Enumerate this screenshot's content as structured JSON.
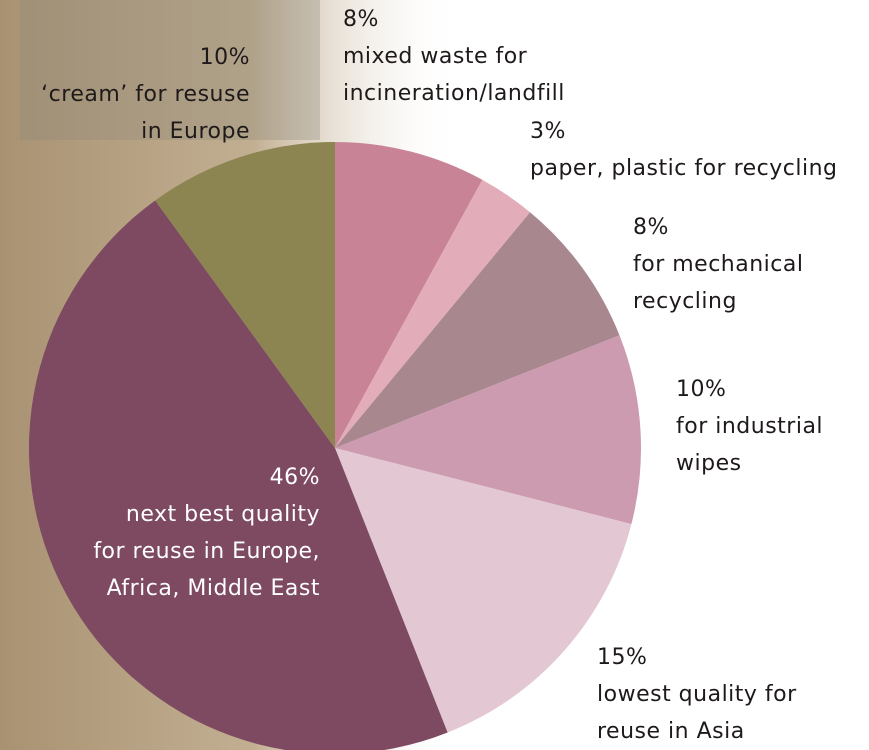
{
  "chart_data": {
    "type": "pie",
    "values": [
      8,
      3,
      8,
      10,
      15,
      46,
      10
    ],
    "value_labels": [
      "8%",
      "3%",
      "8%",
      "10%",
      "15%",
      "46%",
      "10%"
    ],
    "labels": [
      [
        "mixed waste for",
        "incineration/landfill"
      ],
      [
        "paper, plastic for recycling"
      ],
      [
        "for mechanical",
        "recycling"
      ],
      [
        "for industrial",
        "wipes"
      ],
      [
        "lowest quality for",
        "reuse in Asia"
      ],
      [
        "next best quality",
        "for reuse in Europe,",
        "Africa, Middle East"
      ],
      [
        "‘cream’ for resuse",
        "in Europe"
      ]
    ],
    "colors": [
      "#c98396",
      "#e2adb8",
      "#a8878f",
      "#cc9bb0",
      "#e3c7d2",
      "#7d4a62",
      "#8c8551"
    ]
  }
}
